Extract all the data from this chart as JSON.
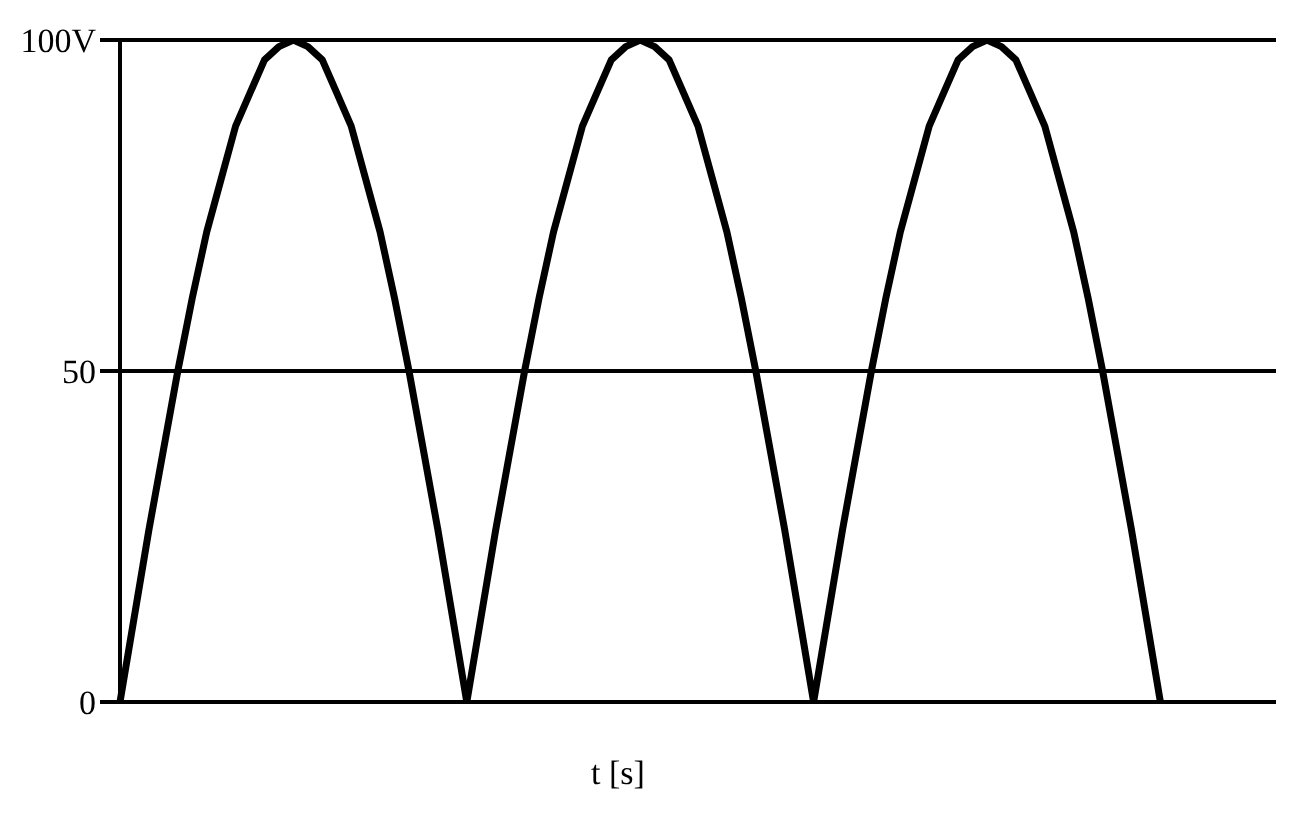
{
  "chart_data": {
    "type": "line",
    "categories": [
      null,
      null,
      null,
      null,
      null,
      null,
      null,
      null,
      null,
      null,
      null,
      null,
      null,
      null,
      null,
      null,
      null,
      null,
      null,
      null,
      null,
      null,
      null,
      null,
      null,
      null,
      null,
      null,
      null,
      null,
      null,
      null,
      null,
      null,
      null,
      null,
      null,
      null,
      null,
      null,
      null,
      null,
      null,
      null,
      null,
      null,
      null,
      null,
      null,
      null,
      null,
      null,
      null,
      null,
      null,
      null,
      null,
      null,
      null,
      null,
      null,
      null,
      null,
      null,
      null,
      null,
      null,
      null,
      null,
      null,
      null,
      null,
      null,
      null,
      null,
      null,
      null,
      null,
      null,
      null,
      null
    ],
    "values": [
      0,
      13,
      26,
      38,
      50,
      61,
      71,
      79,
      87,
      92,
      97,
      99,
      100,
      99,
      97,
      92,
      87,
      79,
      71,
      61,
      50,
      38,
      26,
      13,
      0,
      13,
      26,
      38,
      50,
      61,
      71,
      79,
      87,
      92,
      97,
      99,
      100,
      99,
      97,
      92,
      87,
      79,
      71,
      61,
      50,
      38,
      26,
      13,
      0,
      13,
      26,
      38,
      50,
      61,
      71,
      79,
      87,
      92,
      97,
      99,
      100,
      99,
      97,
      92,
      87,
      79,
      71,
      61,
      50,
      38,
      26,
      13,
      0,
      null,
      null,
      null,
      null,
      null,
      null,
      null,
      null
    ],
    "color": "#000000",
    "xlabel": "t [s]",
    "ylim": [
      0,
      100
    ],
    "yticks": [
      0,
      50,
      {
        "value": 100,
        "label": "100V"
      }
    ],
    "grid": "y",
    "tick_labels": "y"
  }
}
